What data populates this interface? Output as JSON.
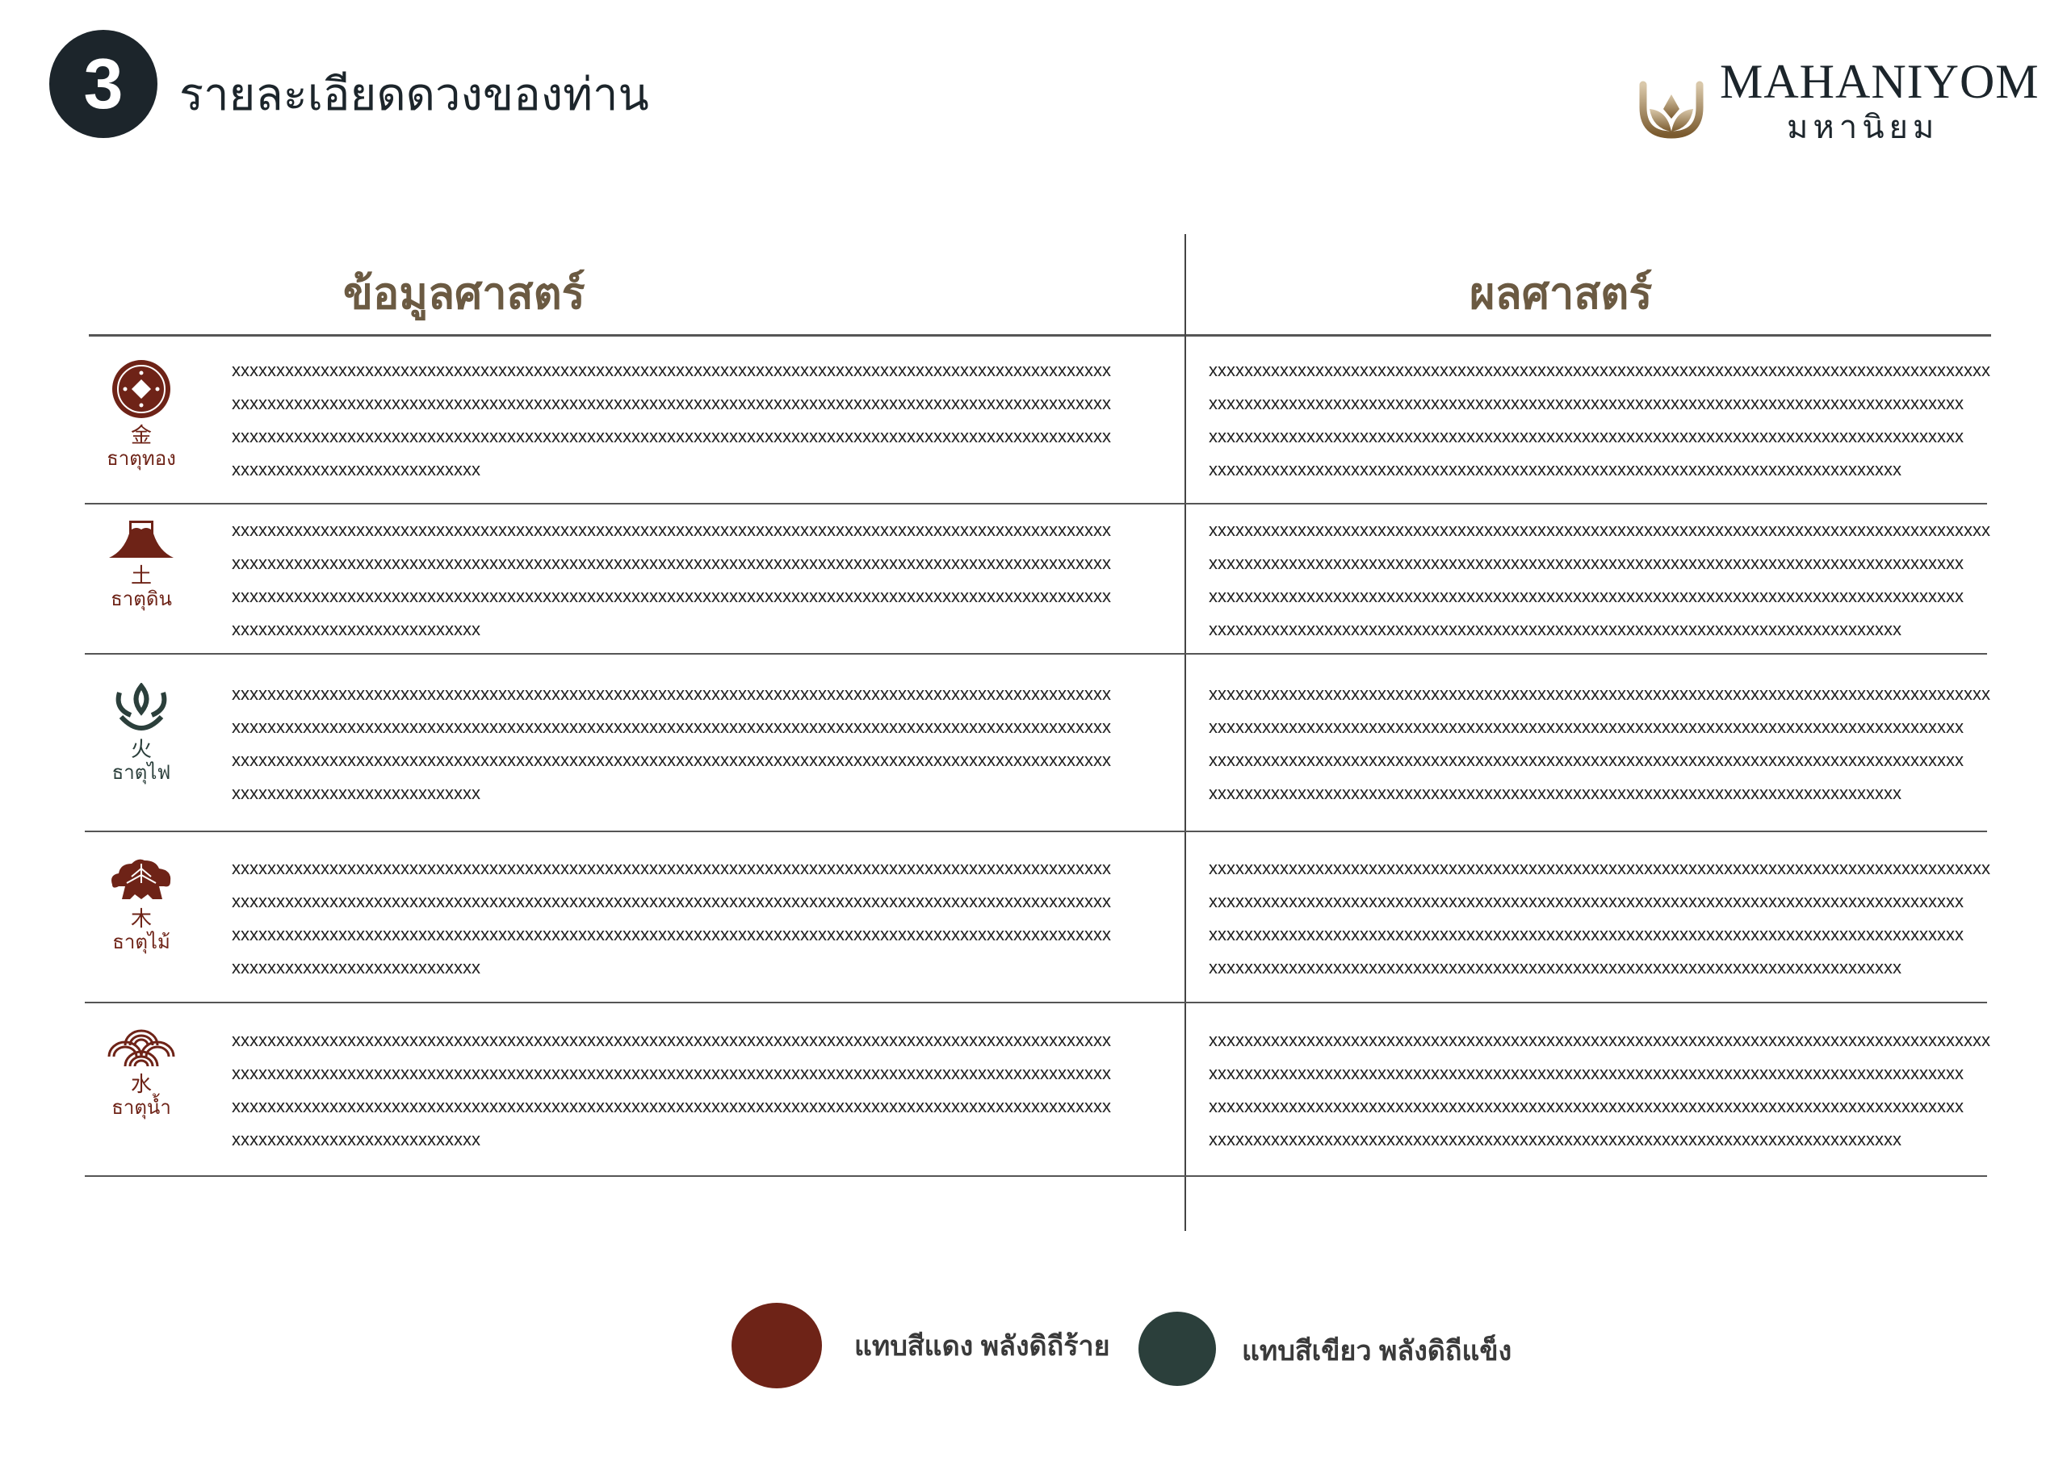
{
  "header": {
    "step_number": "3",
    "title": "รายละเอียดดวงของท่าน"
  },
  "logo": {
    "brand_en": "MAHANIYOM",
    "brand_th": "มหานิยม"
  },
  "columns": {
    "left": "ข้อมูลศาสตร์",
    "right": "ผลศาสตร์"
  },
  "colors": {
    "red": "#6e2317",
    "green": "#2b3f3b",
    "dark": "#1c252b",
    "heading": "#6b5a42"
  },
  "rows": [
    {
      "icon": "coin-icon",
      "kanji": "金",
      "label": "ธาตุทอง",
      "color": "red",
      "left": [
        "xxxxxxxxxxxxxxxxxxxxxxxxxxxxxxxxxxxxxxxxxxxxxxxxxxxxxxxxxxxxxxxxxxxxxxxxxxxxxxxxxxxxxxxxxxxxxxxxxxx",
        "xxxxxxxxxxxxxxxxxxxxxxxxxxxxxxxxxxxxxxxxxxxxxxxxxxxxxxxxxxxxxxxxxxxxxxxxxxxxxxxxxxxxxxxxxxxxxxxxxxx",
        "xxxxxxxxxxxxxxxxxxxxxxxxxxxxxxxxxxxxxxxxxxxxxxxxxxxxxxxxxxxxxxxxxxxxxxxxxxxxxxxxxxxxxxxxxxxxxxxxxxx",
        "xxxxxxxxxxxxxxxxxxxxxxxxxxxx"
      ],
      "right": [
        "xxxxxxxxxxxxxxxxxxxxxxxxxxxxxxxxxxxxxxxxxxxxxxxxxxxxxxxxxxxxxxxxxxxxxxxxxxxxxxxxxxxxxxxx",
        "xxxxxxxxxxxxxxxxxxxxxxxxxxxxxxxxxxxxxxxxxxxxxxxxxxxxxxxxxxxxxxxxxxxxxxxxxxxxxxxxxxxxx",
        "xxxxxxxxxxxxxxxxxxxxxxxxxxxxxxxxxxxxxxxxxxxxxxxxxxxxxxxxxxxxxxxxxxxxxxxxxxxxxxxxxxxxx",
        "xxxxxxxxxxxxxxxxxxxxxxxxxxxxxxxxxxxxxxxxxxxxxxxxxxxxxxxxxxxxxxxxxxxxxxxxxxxxxx"
      ]
    },
    {
      "icon": "mountain-icon",
      "kanji": "土",
      "label": "ธาตุดิน",
      "color": "red",
      "left": [
        "xxxxxxxxxxxxxxxxxxxxxxxxxxxxxxxxxxxxxxxxxxxxxxxxxxxxxxxxxxxxxxxxxxxxxxxxxxxxxxxxxxxxxxxxxxxxxxxxxxx",
        "xxxxxxxxxxxxxxxxxxxxxxxxxxxxxxxxxxxxxxxxxxxxxxxxxxxxxxxxxxxxxxxxxxxxxxxxxxxxxxxxxxxxxxxxxxxxxxxxxxx",
        "xxxxxxxxxxxxxxxxxxxxxxxxxxxxxxxxxxxxxxxxxxxxxxxxxxxxxxxxxxxxxxxxxxxxxxxxxxxxxxxxxxxxxxxxxxxxxxxxxxx",
        "xxxxxxxxxxxxxxxxxxxxxxxxxxxx"
      ],
      "right": [
        "xxxxxxxxxxxxxxxxxxxxxxxxxxxxxxxxxxxxxxxxxxxxxxxxxxxxxxxxxxxxxxxxxxxxxxxxxxxxxxxxxxxxxxxx",
        "xxxxxxxxxxxxxxxxxxxxxxxxxxxxxxxxxxxxxxxxxxxxxxxxxxxxxxxxxxxxxxxxxxxxxxxxxxxxxxxxxxxxx",
        "xxxxxxxxxxxxxxxxxxxxxxxxxxxxxxxxxxxxxxxxxxxxxxxxxxxxxxxxxxxxxxxxxxxxxxxxxxxxxxxxxxxxx",
        "xxxxxxxxxxxxxxxxxxxxxxxxxxxxxxxxxxxxxxxxxxxxxxxxxxxxxxxxxxxxxxxxxxxxxxxxxxxxxx"
      ]
    },
    {
      "icon": "flame-icon",
      "kanji": "火",
      "label": "ธาตุไฟ",
      "color": "green",
      "left": [
        "xxxxxxxxxxxxxxxxxxxxxxxxxxxxxxxxxxxxxxxxxxxxxxxxxxxxxxxxxxxxxxxxxxxxxxxxxxxxxxxxxxxxxxxxxxxxxxxxxxx",
        "xxxxxxxxxxxxxxxxxxxxxxxxxxxxxxxxxxxxxxxxxxxxxxxxxxxxxxxxxxxxxxxxxxxxxxxxxxxxxxxxxxxxxxxxxxxxxxxxxxx",
        "xxxxxxxxxxxxxxxxxxxxxxxxxxxxxxxxxxxxxxxxxxxxxxxxxxxxxxxxxxxxxxxxxxxxxxxxxxxxxxxxxxxxxxxxxxxxxxxxxxx",
        "xxxxxxxxxxxxxxxxxxxxxxxxxxxx"
      ],
      "right": [
        "xxxxxxxxxxxxxxxxxxxxxxxxxxxxxxxxxxxxxxxxxxxxxxxxxxxxxxxxxxxxxxxxxxxxxxxxxxxxxxxxxxxxxxxx",
        "xxxxxxxxxxxxxxxxxxxxxxxxxxxxxxxxxxxxxxxxxxxxxxxxxxxxxxxxxxxxxxxxxxxxxxxxxxxxxxxxxxxxx",
        "xxxxxxxxxxxxxxxxxxxxxxxxxxxxxxxxxxxxxxxxxxxxxxxxxxxxxxxxxxxxxxxxxxxxxxxxxxxxxxxxxxxxx",
        "xxxxxxxxxxxxxxxxxxxxxxxxxxxxxxxxxxxxxxxxxxxxxxxxxxxxxxxxxxxxxxxxxxxxxxxxxxxxxx"
      ]
    },
    {
      "icon": "pine-tree-icon",
      "kanji": "木",
      "label": "ธาตุไม้",
      "color": "red",
      "left": [
        "xxxxxxxxxxxxxxxxxxxxxxxxxxxxxxxxxxxxxxxxxxxxxxxxxxxxxxxxxxxxxxxxxxxxxxxxxxxxxxxxxxxxxxxxxxxxxxxxxxx",
        "xxxxxxxxxxxxxxxxxxxxxxxxxxxxxxxxxxxxxxxxxxxxxxxxxxxxxxxxxxxxxxxxxxxxxxxxxxxxxxxxxxxxxxxxxxxxxxxxxxx",
        "xxxxxxxxxxxxxxxxxxxxxxxxxxxxxxxxxxxxxxxxxxxxxxxxxxxxxxxxxxxxxxxxxxxxxxxxxxxxxxxxxxxxxxxxxxxxxxxxxxx",
        "xxxxxxxxxxxxxxxxxxxxxxxxxxxx"
      ],
      "right": [
        "xxxxxxxxxxxxxxxxxxxxxxxxxxxxxxxxxxxxxxxxxxxxxxxxxxxxxxxxxxxxxxxxxxxxxxxxxxxxxxxxxxxxxxxx",
        "xxxxxxxxxxxxxxxxxxxxxxxxxxxxxxxxxxxxxxxxxxxxxxxxxxxxxxxxxxxxxxxxxxxxxxxxxxxxxxxxxxxxx",
        "xxxxxxxxxxxxxxxxxxxxxxxxxxxxxxxxxxxxxxxxxxxxxxxxxxxxxxxxxxxxxxxxxxxxxxxxxxxxxxxxxxxxx",
        "xxxxxxxxxxxxxxxxxxxxxxxxxxxxxxxxxxxxxxxxxxxxxxxxxxxxxxxxxxxxxxxxxxxxxxxxxxxxxx"
      ]
    },
    {
      "icon": "wave-icon",
      "kanji": "水",
      "label": "ธาตุน้ำ",
      "color": "red",
      "left": [
        "xxxxxxxxxxxxxxxxxxxxxxxxxxxxxxxxxxxxxxxxxxxxxxxxxxxxxxxxxxxxxxxxxxxxxxxxxxxxxxxxxxxxxxxxxxxxxxxxxxx",
        "xxxxxxxxxxxxxxxxxxxxxxxxxxxxxxxxxxxxxxxxxxxxxxxxxxxxxxxxxxxxxxxxxxxxxxxxxxxxxxxxxxxxxxxxxxxxxxxxxxx",
        "xxxxxxxxxxxxxxxxxxxxxxxxxxxxxxxxxxxxxxxxxxxxxxxxxxxxxxxxxxxxxxxxxxxxxxxxxxxxxxxxxxxxxxxxxxxxxxxxxxx",
        "xxxxxxxxxxxxxxxxxxxxxxxxxxxx"
      ],
      "right": [
        "xxxxxxxxxxxxxxxxxxxxxxxxxxxxxxxxxxxxxxxxxxxxxxxxxxxxxxxxxxxxxxxxxxxxxxxxxxxxxxxxxxxxxxxx",
        "xxxxxxxxxxxxxxxxxxxxxxxxxxxxxxxxxxxxxxxxxxxxxxxxxxxxxxxxxxxxxxxxxxxxxxxxxxxxxxxxxxxxx",
        "xxxxxxxxxxxxxxxxxxxxxxxxxxxxxxxxxxxxxxxxxxxxxxxxxxxxxxxxxxxxxxxxxxxxxxxxxxxxxxxxxxxxx",
        "xxxxxxxxxxxxxxxxxxxxxxxxxxxxxxxxxxxxxxxxxxxxxxxxxxxxxxxxxxxxxxxxxxxxxxxxxxxxxx"
      ]
    }
  ],
  "legend": [
    {
      "label": "แทบสีแดง พลังดิถีร้าย",
      "color": "#6e2317"
    },
    {
      "label": "แทบสีเขียว พลังดิถีแข็ง",
      "color": "#2b3f3b"
    }
  ]
}
